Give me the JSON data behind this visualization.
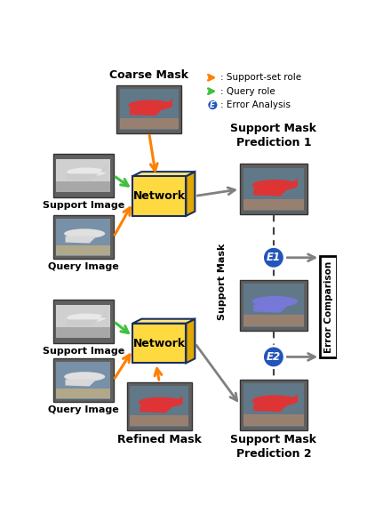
{
  "coarse_mask_label": "Coarse Mask",
  "refined_mask_label": "Refined Mask",
  "support_mask_label": "Support Mask",
  "network_label": "Network",
  "support_image_label": "Support Image",
  "query_image_label": "Query Image",
  "prediction1_label": "Support Mask\nPrediction 1",
  "prediction2_label": "Support Mask\nPrediction 2",
  "error_comparison_label": "Error Comparison",
  "e1_label": "E1",
  "e2_label": "E2",
  "legend_items": [
    {
      "label": ": Support-set role",
      "color": "#FF8000"
    },
    {
      "label": ": Query role",
      "color": "#40C040"
    },
    {
      "label": ": Error Analysis",
      "color": "#2255BB"
    }
  ],
  "bg_color": "#FFFFFF",
  "network_face_color": "#FFD940",
  "network_top_color": "#FFE880",
  "network_right_color": "#E0A800",
  "network_edge_color": "#1A2E60",
  "error_circle_color": "#2255BB",
  "arrow_orange": "#FF8000",
  "arrow_green": "#40C040",
  "arrow_gray": "#808080",
  "gray_img_bg": "#B8B8B8",
  "blue_img_bg": "#607898",
  "mask_img_bg": "#909898",
  "mask_red": "#E83030",
  "mask_blue": "#7878E0",
  "dashed_color": "#404040"
}
